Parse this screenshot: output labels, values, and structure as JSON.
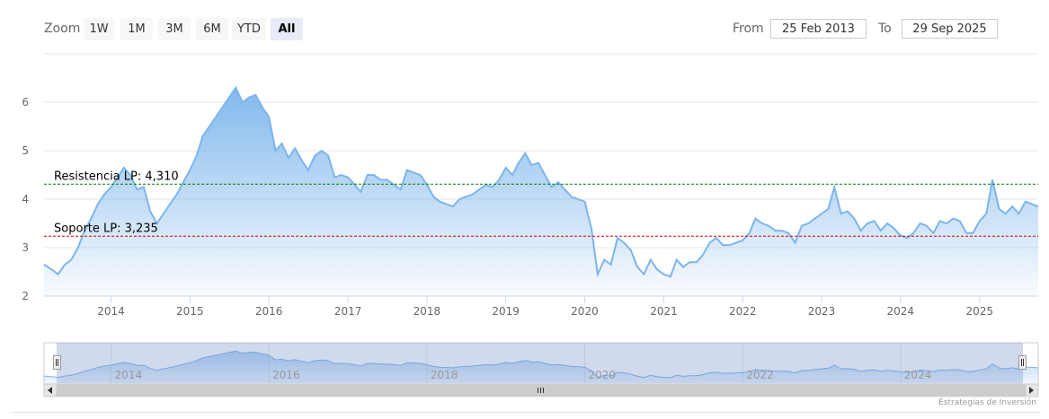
{
  "toolbar": {
    "zoom_label": "Zoom",
    "buttons": [
      "1W",
      "1M",
      "3M",
      "6M",
      "YTD",
      "All"
    ],
    "active_button": "All",
    "from_label": "From",
    "from_value": "25 Feb 2013",
    "to_label": "To",
    "to_value": "29 Sep 2025"
  },
  "credits": "Estrategias de Inversión",
  "colors": {
    "line": "#7cb5ec",
    "resistance": "#008000",
    "support": "#cc0000",
    "grid": "#e6e6e6",
    "navigator_mask": "rgba(102,133,194,0.3)"
  },
  "chart_data": {
    "type": "area",
    "title": "",
    "xlabel": "",
    "ylabel": "",
    "xlim": [
      "2013-02-25",
      "2025-09-29"
    ],
    "ylim": [
      2,
      7
    ],
    "y_ticks": [
      2,
      3,
      4,
      5,
      6
    ],
    "x_ticks": [
      "2014",
      "2015",
      "2016",
      "2017",
      "2018",
      "2019",
      "2020",
      "2021",
      "2022",
      "2023",
      "2024",
      "2025"
    ],
    "navigator_ticks": [
      "2014",
      "2016",
      "2018",
      "2020",
      "2022",
      "2024"
    ],
    "grid": true,
    "reference_lines": [
      {
        "label": "Resistencia LP: 4,310",
        "value": 4.31,
        "style": "dashed",
        "color": "green"
      },
      {
        "label": "Soporte LP: 3,235",
        "value": 3.235,
        "style": "dashed",
        "color": "red"
      }
    ],
    "series": [
      {
        "values": [
          [
            "2013-02-25",
            2.65
          ],
          [
            "2013-04-01",
            2.55
          ],
          [
            "2013-05-01",
            2.45
          ],
          [
            "2013-06-01",
            2.65
          ],
          [
            "2013-07-01",
            2.75
          ],
          [
            "2013-08-01",
            3.0
          ],
          [
            "2013-09-01",
            3.35
          ],
          [
            "2013-10-01",
            3.6
          ],
          [
            "2013-11-01",
            3.9
          ],
          [
            "2013-12-01",
            4.1
          ],
          [
            "2014-01-01",
            4.25
          ],
          [
            "2014-02-01",
            4.45
          ],
          [
            "2014-03-01",
            4.65
          ],
          [
            "2014-04-01",
            4.5
          ],
          [
            "2014-05-01",
            4.2
          ],
          [
            "2014-06-01",
            4.25
          ],
          [
            "2014-07-01",
            3.75
          ],
          [
            "2014-08-01",
            3.5
          ],
          [
            "2014-09-01",
            3.7
          ],
          [
            "2014-10-01",
            3.9
          ],
          [
            "2014-11-01",
            4.1
          ],
          [
            "2014-12-01",
            4.35
          ],
          [
            "2015-01-01",
            4.6
          ],
          [
            "2015-02-01",
            4.9
          ],
          [
            "2015-03-01",
            5.3
          ],
          [
            "2015-04-01",
            5.5
          ],
          [
            "2015-05-01",
            5.7
          ],
          [
            "2015-06-01",
            5.9
          ],
          [
            "2015-07-01",
            6.1
          ],
          [
            "2015-08-01",
            6.3
          ],
          [
            "2015-09-01",
            6.0
          ],
          [
            "2015-10-01",
            6.1
          ],
          [
            "2015-11-01",
            6.15
          ],
          [
            "2015-12-01",
            5.9
          ],
          [
            "2016-01-01",
            5.7
          ],
          [
            "2016-02-01",
            5.0
          ],
          [
            "2016-03-01",
            5.15
          ],
          [
            "2016-04-01",
            4.85
          ],
          [
            "2016-05-01",
            5.05
          ],
          [
            "2016-06-01",
            4.8
          ],
          [
            "2016-07-01",
            4.6
          ],
          [
            "2016-08-01",
            4.9
          ],
          [
            "2016-09-01",
            5.0
          ],
          [
            "2016-10-01",
            4.9
          ],
          [
            "2016-11-01",
            4.45
          ],
          [
            "2016-12-01",
            4.5
          ],
          [
            "2017-01-01",
            4.45
          ],
          [
            "2017-02-01",
            4.3
          ],
          [
            "2017-03-01",
            4.15
          ],
          [
            "2017-04-01",
            4.5
          ],
          [
            "2017-05-01",
            4.5
          ],
          [
            "2017-06-01",
            4.4
          ],
          [
            "2017-07-01",
            4.4
          ],
          [
            "2017-08-01",
            4.3
          ],
          [
            "2017-09-01",
            4.2
          ],
          [
            "2017-10-01",
            4.6
          ],
          [
            "2017-11-01",
            4.55
          ],
          [
            "2017-12-01",
            4.5
          ],
          [
            "2018-01-01",
            4.3
          ],
          [
            "2018-02-01",
            4.05
          ],
          [
            "2018-03-01",
            3.95
          ],
          [
            "2018-04-01",
            3.9
          ],
          [
            "2018-05-01",
            3.85
          ],
          [
            "2018-06-01",
            4.0
          ],
          [
            "2018-07-01",
            4.05
          ],
          [
            "2018-08-01",
            4.1
          ],
          [
            "2018-09-01",
            4.2
          ],
          [
            "2018-10-01",
            4.3
          ],
          [
            "2018-11-01",
            4.25
          ],
          [
            "2018-12-01",
            4.4
          ],
          [
            "2019-01-01",
            4.65
          ],
          [
            "2019-02-01",
            4.5
          ],
          [
            "2019-03-01",
            4.75
          ],
          [
            "2019-04-01",
            4.95
          ],
          [
            "2019-05-01",
            4.7
          ],
          [
            "2019-06-01",
            4.75
          ],
          [
            "2019-07-01",
            4.5
          ],
          [
            "2019-08-01",
            4.25
          ],
          [
            "2019-09-01",
            4.35
          ],
          [
            "2019-10-01",
            4.2
          ],
          [
            "2019-11-01",
            4.05
          ],
          [
            "2019-12-01",
            4.0
          ],
          [
            "2020-01-01",
            3.95
          ],
          [
            "2020-02-01",
            3.4
          ],
          [
            "2020-03-01",
            2.45
          ],
          [
            "2020-04-01",
            2.75
          ],
          [
            "2020-05-01",
            2.65
          ],
          [
            "2020-06-01",
            3.2
          ],
          [
            "2020-07-01",
            3.1
          ],
          [
            "2020-08-01",
            2.95
          ],
          [
            "2020-09-01",
            2.6
          ],
          [
            "2020-10-01",
            2.45
          ],
          [
            "2020-11-01",
            2.75
          ],
          [
            "2020-12-01",
            2.55
          ],
          [
            "2021-01-01",
            2.45
          ],
          [
            "2021-02-01",
            2.4
          ],
          [
            "2021-03-01",
            2.75
          ],
          [
            "2021-04-01",
            2.6
          ],
          [
            "2021-05-01",
            2.7
          ],
          [
            "2021-06-01",
            2.7
          ],
          [
            "2021-07-01",
            2.85
          ],
          [
            "2021-08-01",
            3.1
          ],
          [
            "2021-09-01",
            3.2
          ],
          [
            "2021-10-01",
            3.05
          ],
          [
            "2021-11-01",
            3.05
          ],
          [
            "2021-12-01",
            3.1
          ],
          [
            "2022-01-01",
            3.15
          ],
          [
            "2022-02-01",
            3.3
          ],
          [
            "2022-03-01",
            3.6
          ],
          [
            "2022-04-01",
            3.5
          ],
          [
            "2022-05-01",
            3.45
          ],
          [
            "2022-06-01",
            3.35
          ],
          [
            "2022-07-01",
            3.35
          ],
          [
            "2022-08-01",
            3.3
          ],
          [
            "2022-09-01",
            3.1
          ],
          [
            "2022-10-01",
            3.45
          ],
          [
            "2022-11-01",
            3.5
          ],
          [
            "2022-12-01",
            3.6
          ],
          [
            "2023-01-01",
            3.7
          ],
          [
            "2023-02-01",
            3.8
          ],
          [
            "2023-03-01",
            4.25
          ],
          [
            "2023-04-01",
            3.7
          ],
          [
            "2023-05-01",
            3.75
          ],
          [
            "2023-06-01",
            3.6
          ],
          [
            "2023-07-01",
            3.35
          ],
          [
            "2023-08-01",
            3.5
          ],
          [
            "2023-09-01",
            3.55
          ],
          [
            "2023-10-01",
            3.35
          ],
          [
            "2023-11-01",
            3.5
          ],
          [
            "2023-12-01",
            3.4
          ],
          [
            "2024-01-01",
            3.25
          ],
          [
            "2024-02-01",
            3.2
          ],
          [
            "2024-03-01",
            3.3
          ],
          [
            "2024-04-01",
            3.5
          ],
          [
            "2024-05-01",
            3.45
          ],
          [
            "2024-06-01",
            3.3
          ],
          [
            "2024-07-01",
            3.55
          ],
          [
            "2024-08-01",
            3.5
          ],
          [
            "2024-09-01",
            3.6
          ],
          [
            "2024-10-01",
            3.55
          ],
          [
            "2024-11-01",
            3.3
          ],
          [
            "2024-12-01",
            3.3
          ],
          [
            "2025-01-01",
            3.55
          ],
          [
            "2025-02-01",
            3.7
          ],
          [
            "2025-03-01",
            4.4
          ],
          [
            "2025-04-01",
            3.8
          ],
          [
            "2025-05-01",
            3.7
          ],
          [
            "2025-06-01",
            3.85
          ],
          [
            "2025-07-01",
            3.7
          ],
          [
            "2025-08-01",
            3.95
          ],
          [
            "2025-09-29",
            3.85
          ]
        ]
      }
    ]
  }
}
